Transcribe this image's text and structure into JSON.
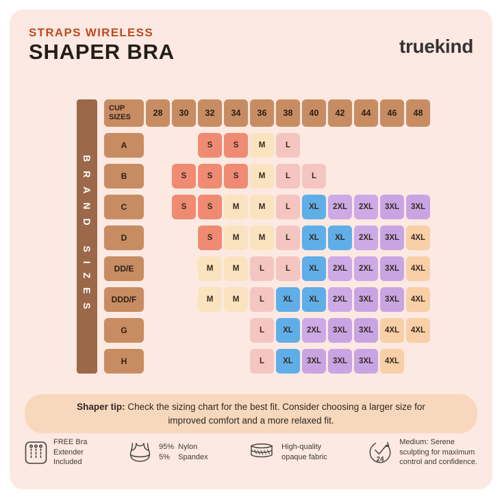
{
  "header": {
    "subtitle": "STRAPS WIRELESS",
    "title": "SHAPER BRA",
    "brand": "truekind"
  },
  "chart_data": {
    "type": "table",
    "title": "Shaper Bra size chart (brand size by band and cup)",
    "side_label": "BRAND SIZES",
    "corner_label": "CUP SIZES",
    "columns": [
      "28",
      "30",
      "32",
      "34",
      "36",
      "38",
      "40",
      "42",
      "44",
      "46",
      "48"
    ],
    "rows": [
      {
        "cup": "A",
        "cells": {
          "32": "S",
          "34": "S",
          "36": "M",
          "38": "L"
        }
      },
      {
        "cup": "B",
        "cells": {
          "30": "S",
          "32": "S",
          "34": "S",
          "36": "M",
          "38": "L",
          "40": "L"
        }
      },
      {
        "cup": "C",
        "cells": {
          "30": "S",
          "32": "S",
          "34": "M",
          "36": "M",
          "38": "L",
          "40": "XL",
          "42": "2XL",
          "44": "2XL",
          "46": "3XL",
          "48": "3XL"
        }
      },
      {
        "cup": "D",
        "cells": {
          "32": "S",
          "34": "M",
          "36": "M",
          "38": "L",
          "40": "XL",
          "42": "XL",
          "44": "2XL",
          "46": "3XL",
          "48": "4XL"
        }
      },
      {
        "cup": "DD/E",
        "cells": {
          "32": "M",
          "34": "M",
          "36": "L",
          "38": "L",
          "40": "XL",
          "42": "2XL",
          "44": "2XL",
          "46": "3XL",
          "48": "4XL"
        }
      },
      {
        "cup": "DDD/F",
        "cells": {
          "32": "M",
          "34": "M",
          "36": "L",
          "38": "XL",
          "40": "XL",
          "42": "2XL",
          "44": "3XL",
          "46": "3XL",
          "48": "4XL"
        }
      },
      {
        "cup": "G",
        "cells": {
          "36": "L",
          "38": "XL",
          "40": "2XL",
          "42": "3XL",
          "44": "3XL",
          "46": "4XL",
          "48": "4XL"
        }
      },
      {
        "cup": "H",
        "cells": {
          "36": "L",
          "38": "XL",
          "40": "3XL",
          "42": "3XL",
          "44": "3XL",
          "46": "4XL"
        }
      }
    ],
    "size_colors": {
      "S": "#ee8b72",
      "M": "#fae3bf",
      "L": "#f5c6c1",
      "XL": "#60aee8",
      "2XL": "#cda9e6",
      "3XL": "#c9a4e3",
      "4XL": "#f9cfa7"
    }
  },
  "tip": {
    "label": "Shaper tip:",
    "text": "Check the sizing chart for the best fit. Consider choosing a larger size for improved comfort and a more relaxed fit."
  },
  "features": [
    {
      "icon": "bra-extender-icon",
      "lines": [
        "FREE Bra",
        "Extender",
        "Included"
      ]
    },
    {
      "icon": "bra-icon",
      "lines": [
        "95%  Nylon",
        "5%    Spandex"
      ]
    },
    {
      "icon": "fabric-layers-icon",
      "lines": [
        "High-quality",
        "opaque fabric"
      ]
    },
    {
      "icon": "clock-24-icon",
      "lines": [
        "Medium: Serene",
        "sculpting for maximum",
        "control and confidence."
      ]
    }
  ],
  "theme": {
    "background": "#fce9e2",
    "tan_cell": "#c88c63",
    "brown_bar": "#9b684a",
    "accent_red": "#bc4a21",
    "dark_text": "#241e18",
    "tip_background": "#f8d8bd"
  }
}
